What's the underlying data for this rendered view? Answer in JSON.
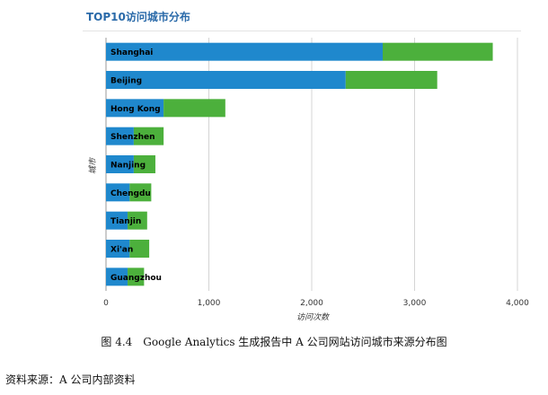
{
  "chart_data": {
    "type": "bar",
    "orientation": "horizontal",
    "stacked": true,
    "title": "TOP10访问城市分布",
    "xlabel": "访问次数",
    "ylabel": "城市",
    "xlim": [
      0,
      4000
    ],
    "xticks": [
      0,
      1000,
      2000,
      3000,
      4000
    ],
    "xtick_labels": [
      "0",
      "1,000",
      "2,000",
      "3,000",
      "4,000"
    ],
    "grid": true,
    "categories": [
      "Shanghai",
      "Beijing",
      "Hong Kong",
      "Shenzhen",
      "Nanjing",
      "Chengdu",
      "Tianjin",
      "Xi'an",
      "Guangzhou"
    ],
    "series": [
      {
        "color": "#1f88cd",
        "values": [
          2690,
          2330,
          560,
          270,
          270,
          230,
          210,
          230,
          210
        ]
      },
      {
        "color": "#4cb03c",
        "values": [
          1070,
          890,
          600,
          290,
          210,
          210,
          190,
          190,
          160
        ]
      }
    ]
  },
  "caption": "图 4.4　Google Analytics 生成报告中 A 公司网站访问城市来源分布图",
  "source": "资料来源：A 公司内部资料"
}
